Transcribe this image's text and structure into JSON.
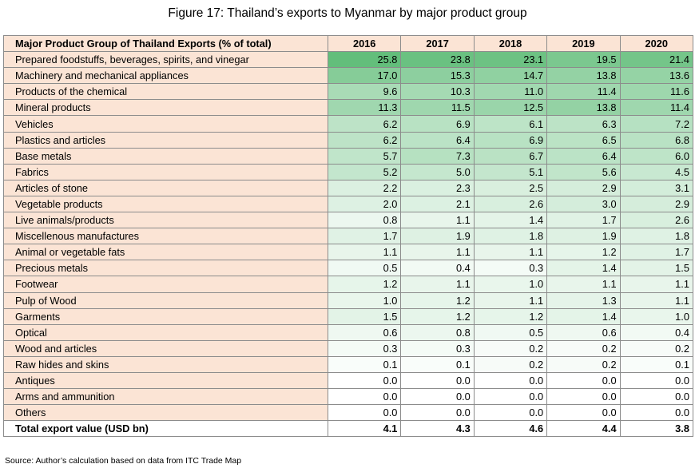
{
  "title": "Figure 17: Thailand’s exports to Myanmar by major product group",
  "header": {
    "col0": "Major Product Group of Thailand Exports (% of total)",
    "years": [
      "2016",
      "2017",
      "2018",
      "2019",
      "2020"
    ]
  },
  "rows": [
    {
      "label": "Prepared foodstuffs, beverages, spirits, and vinegar",
      "values": [
        "25.8",
        "23.8",
        "23.1",
        "19.5",
        "21.4"
      ]
    },
    {
      "label": "Machinery and mechanical appliances",
      "values": [
        "17.0",
        "15.3",
        "14.7",
        "13.8",
        "13.6"
      ]
    },
    {
      "label": "Products of the chemical",
      "values": [
        "9.6",
        "10.3",
        "11.0",
        "11.4",
        "11.6"
      ]
    },
    {
      "label": "Mineral products",
      "values": [
        "11.3",
        "11.5",
        "12.5",
        "13.8",
        "11.4"
      ]
    },
    {
      "label": "Vehicles",
      "values": [
        "6.2",
        "6.9",
        "6.1",
        "6.3",
        "7.2"
      ]
    },
    {
      "label": "Plastics and articles",
      "values": [
        "6.2",
        "6.4",
        "6.9",
        "6.5",
        "6.8"
      ]
    },
    {
      "label": "Base metals",
      "values": [
        "5.7",
        "7.3",
        "6.7",
        "6.4",
        "6.0"
      ]
    },
    {
      "label": "Fabrics",
      "values": [
        "5.2",
        "5.0",
        "5.1",
        "5.6",
        "4.5"
      ]
    },
    {
      "label": "Articles of stone",
      "values": [
        "2.2",
        "2.3",
        "2.5",
        "2.9",
        "3.1"
      ]
    },
    {
      "label": "Vegetable products",
      "values": [
        "2.0",
        "2.1",
        "2.6",
        "3.0",
        "2.9"
      ]
    },
    {
      "label": "Live animals/products",
      "values": [
        "0.8",
        "1.1",
        "1.4",
        "1.7",
        "2.6"
      ]
    },
    {
      "label": "Miscellenous manufactures",
      "values": [
        "1.7",
        "1.9",
        "1.8",
        "1.9",
        "1.8"
      ]
    },
    {
      "label": "Animal or vegetable fats",
      "values": [
        "1.1",
        "1.1",
        "1.1",
        "1.2",
        "1.7"
      ]
    },
    {
      "label": "Precious metals",
      "values": [
        "0.5",
        "0.4",
        "0.3",
        "1.4",
        "1.5"
      ]
    },
    {
      "label": "Footwear",
      "values": [
        "1.2",
        "1.1",
        "1.0",
        "1.1",
        "1.1"
      ]
    },
    {
      "label": "Pulp of Wood",
      "values": [
        "1.0",
        "1.2",
        "1.1",
        "1.3",
        "1.1"
      ]
    },
    {
      "label": "Garments",
      "values": [
        "1.5",
        "1.2",
        "1.2",
        "1.4",
        "1.0"
      ]
    },
    {
      "label": "Optical",
      "values": [
        "0.6",
        "0.8",
        "0.5",
        "0.6",
        "0.4"
      ]
    },
    {
      "label": "Wood and articles",
      "values": [
        "0.3",
        "0.3",
        "0.2",
        "0.2",
        "0.2"
      ]
    },
    {
      "label": "Raw hides and skins",
      "values": [
        "0.1",
        "0.1",
        "0.2",
        "0.2",
        "0.1"
      ]
    },
    {
      "label": "Antiques",
      "values": [
        "0.0",
        "0.0",
        "0.0",
        "0.0",
        "0.0"
      ]
    },
    {
      "label": "Arms and ammunition",
      "values": [
        "0.0",
        "0.0",
        "0.0",
        "0.0",
        "0.0"
      ]
    },
    {
      "label": "Others",
      "values": [
        "0.0",
        "0.0",
        "0.0",
        "0.0",
        "0.0"
      ]
    }
  ],
  "total": {
    "label": "Total export value (USD bn)",
    "values": [
      "4.1",
      "4.3",
      "4.6",
      "4.4",
      "3.8"
    ]
  },
  "source": "Source: Author’s calculation based on data from ITC Trade Map",
  "colors": {
    "label_bg": "#fbe4d5",
    "heat_high": "#63be7b",
    "heat_low": "#ffffff",
    "border": "#8c8c8c"
  }
}
